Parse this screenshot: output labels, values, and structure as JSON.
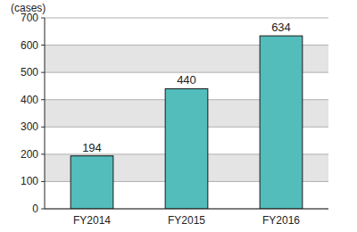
{
  "chart_data": {
    "type": "bar",
    "y_label": "(cases)",
    "categories": [
      "FY2014",
      "FY2015",
      "FY2016"
    ],
    "values": [
      194,
      440,
      634
    ],
    "color": "#52bdbb",
    "ylim": [
      0,
      700
    ],
    "yticks": [
      0,
      100,
      200,
      300,
      400,
      500,
      600,
      700
    ],
    "grid": true,
    "data_labels": true
  }
}
